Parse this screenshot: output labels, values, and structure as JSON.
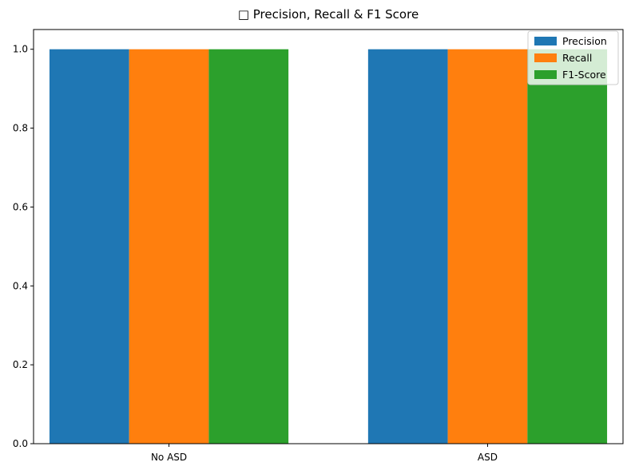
{
  "chart_data": {
    "type": "bar",
    "title": "□ Precision, Recall & F1 Score",
    "xlabel": "",
    "ylabel": "",
    "categories": [
      "No ASD",
      "ASD"
    ],
    "series": [
      {
        "name": "Precision",
        "values": [
          1.0,
          1.0
        ],
        "color": "#1f77b4"
      },
      {
        "name": "Recall",
        "values": [
          1.0,
          1.0
        ],
        "color": "#ff7f0e"
      },
      {
        "name": "F1-Score",
        "values": [
          1.0,
          1.0
        ],
        "color": "#2ca02c"
      }
    ],
    "ylim": [
      0,
      1.05
    ],
    "yticks": [
      "0.0",
      "0.2",
      "0.4",
      "0.6",
      "0.8",
      "1.0"
    ],
    "grid": false,
    "legend_position": "top-right"
  }
}
